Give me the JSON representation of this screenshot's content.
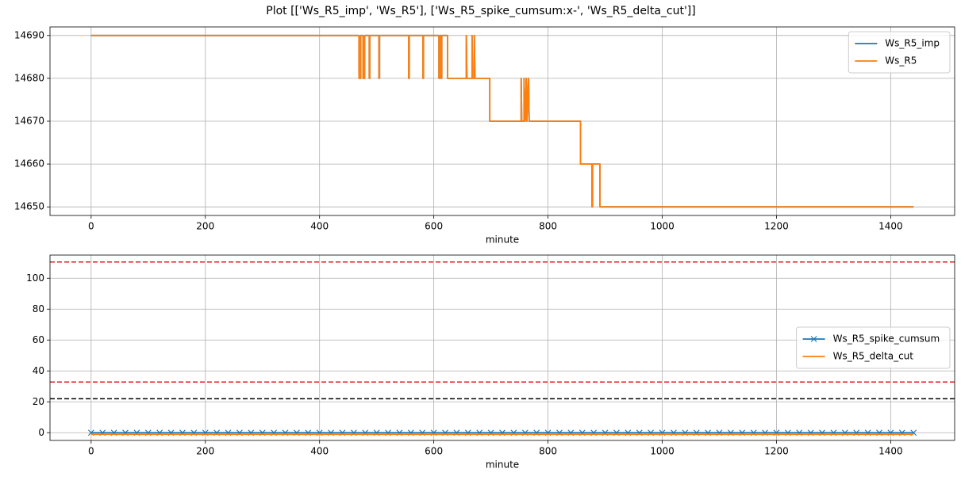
{
  "title": "Plot [['Ws_R5_imp', 'Ws_R5'], ['Ws_R5_spike_cumsum:x-', 'Ws_R5_delta_cut']]",
  "chart_data": [
    {
      "type": "line",
      "xlabel": "minute",
      "grid": true,
      "legend": "upper right",
      "xlim": [
        -72,
        1512
      ],
      "xticks": [
        0,
        200,
        400,
        600,
        800,
        1000,
        1200,
        1400
      ],
      "ylim": [
        14648,
        14692
      ],
      "yticks": [
        14650,
        14660,
        14670,
        14680,
        14690
      ],
      "series": [
        {
          "name": "Ws_R5_imp",
          "color": "#1f77b4",
          "x": [
            0,
            469,
            469,
            472,
            472,
            476,
            476,
            479,
            479,
            487,
            487,
            488,
            488,
            504,
            504,
            505,
            505,
            556,
            556,
            557,
            557,
            581,
            581,
            582,
            582,
            609,
            609,
            611,
            611,
            613,
            613,
            614,
            614,
            624,
            624,
            657,
            657,
            658,
            667,
            667,
            668,
            671,
            671,
            672,
            698,
            698,
            753,
            753,
            754,
            758,
            758,
            760,
            762,
            763,
            766,
            767,
            857,
            857,
            877,
            877,
            878,
            878,
            891,
            891,
            1440
          ],
          "values": [
            14690,
            14690,
            14680,
            14680,
            14690,
            14690,
            14680,
            14680,
            14690,
            14690,
            14680,
            14680,
            14690,
            14690,
            14680,
            14680,
            14690,
            14690,
            14680,
            14680,
            14690,
            14690,
            14680,
            14680,
            14690,
            14690,
            14680,
            14680,
            14690,
            14690,
            14680,
            14680,
            14690,
            14690,
            14680,
            14680,
            14690,
            14680,
            14680,
            14690,
            14680,
            14680,
            14690,
            14680,
            14680,
            14670,
            14670,
            14680,
            14670,
            14670,
            14680,
            14670,
            14680,
            14670,
            14680,
            14670,
            14670,
            14660,
            14660,
            14650,
            14650,
            14660,
            14660,
            14650,
            14650
          ]
        },
        {
          "name": "Ws_R5",
          "color": "#ff7f0e",
          "x": [
            0,
            469,
            469,
            472,
            472,
            476,
            476,
            479,
            479,
            487,
            487,
            488,
            488,
            504,
            504,
            505,
            505,
            556,
            556,
            557,
            557,
            581,
            581,
            582,
            582,
            609,
            609,
            611,
            611,
            613,
            613,
            614,
            614,
            624,
            624,
            657,
            657,
            658,
            667,
            667,
            668,
            671,
            671,
            672,
            698,
            698,
            753,
            753,
            754,
            758,
            758,
            760,
            762,
            763,
            766,
            767,
            857,
            857,
            877,
            877,
            878,
            878,
            891,
            891,
            1440
          ],
          "values": [
            14690,
            14690,
            14680,
            14680,
            14690,
            14690,
            14680,
            14680,
            14690,
            14690,
            14680,
            14680,
            14690,
            14690,
            14680,
            14680,
            14690,
            14690,
            14680,
            14680,
            14690,
            14690,
            14680,
            14680,
            14690,
            14690,
            14680,
            14680,
            14690,
            14690,
            14680,
            14680,
            14690,
            14690,
            14680,
            14680,
            14690,
            14680,
            14680,
            14690,
            14680,
            14680,
            14690,
            14680,
            14680,
            14670,
            14670,
            14680,
            14670,
            14670,
            14680,
            14670,
            14680,
            14670,
            14680,
            14670,
            14670,
            14660,
            14660,
            14650,
            14650,
            14660,
            14660,
            14650,
            14650
          ]
        }
      ]
    },
    {
      "type": "line",
      "xlabel": "minute",
      "grid": true,
      "legend": "center right",
      "xlim": [
        -72,
        1512
      ],
      "xticks": [
        0,
        200,
        400,
        600,
        800,
        1000,
        1200,
        1400
      ],
      "ylim": [
        -5,
        115
      ],
      "yticks": [
        0,
        20,
        40,
        60,
        80,
        100
      ],
      "hlines": [
        {
          "value": 110.5,
          "color": "#e8141c"
        },
        {
          "value": 32.8,
          "color": "#e8141c"
        },
        {
          "value": 22,
          "color": "#000000"
        }
      ],
      "series": [
        {
          "name": "Ws_R5_spike_cumsum",
          "color": "#1f77b4",
          "marker": "x",
          "x": [
            0,
            20,
            40,
            60,
            80,
            100,
            120,
            140,
            160,
            180,
            200,
            220,
            240,
            260,
            280,
            300,
            320,
            340,
            360,
            380,
            400,
            420,
            440,
            460,
            480,
            500,
            520,
            540,
            560,
            580,
            600,
            620,
            640,
            660,
            680,
            700,
            720,
            740,
            760,
            780,
            800,
            820,
            840,
            860,
            880,
            900,
            920,
            940,
            960,
            980,
            1000,
            1020,
            1040,
            1060,
            1080,
            1100,
            1120,
            1140,
            1160,
            1180,
            1200,
            1220,
            1240,
            1260,
            1280,
            1300,
            1320,
            1340,
            1360,
            1380,
            1400,
            1420,
            1440
          ],
          "values": [
            0,
            0,
            0,
            0,
            0,
            0,
            0,
            0,
            0,
            0,
            0,
            0,
            0,
            0,
            0,
            0,
            0,
            0,
            0,
            0,
            0,
            0,
            0,
            0,
            0,
            0,
            0,
            0,
            0,
            0,
            0,
            0,
            0,
            0,
            0,
            0,
            0,
            0,
            0,
            0,
            0,
            0,
            0,
            0,
            0,
            0,
            0,
            0,
            0,
            0,
            0,
            0,
            0,
            0,
            0,
            0,
            0,
            0,
            0,
            0,
            0,
            0,
            0,
            0,
            0,
            0,
            0,
            0,
            0,
            0,
            0,
            0,
            0
          ]
        },
        {
          "name": "Ws_R5_delta_cut",
          "color": "#ff7f0e",
          "x": [
            0,
            1440
          ],
          "values": [
            -1,
            -1
          ]
        }
      ]
    }
  ]
}
